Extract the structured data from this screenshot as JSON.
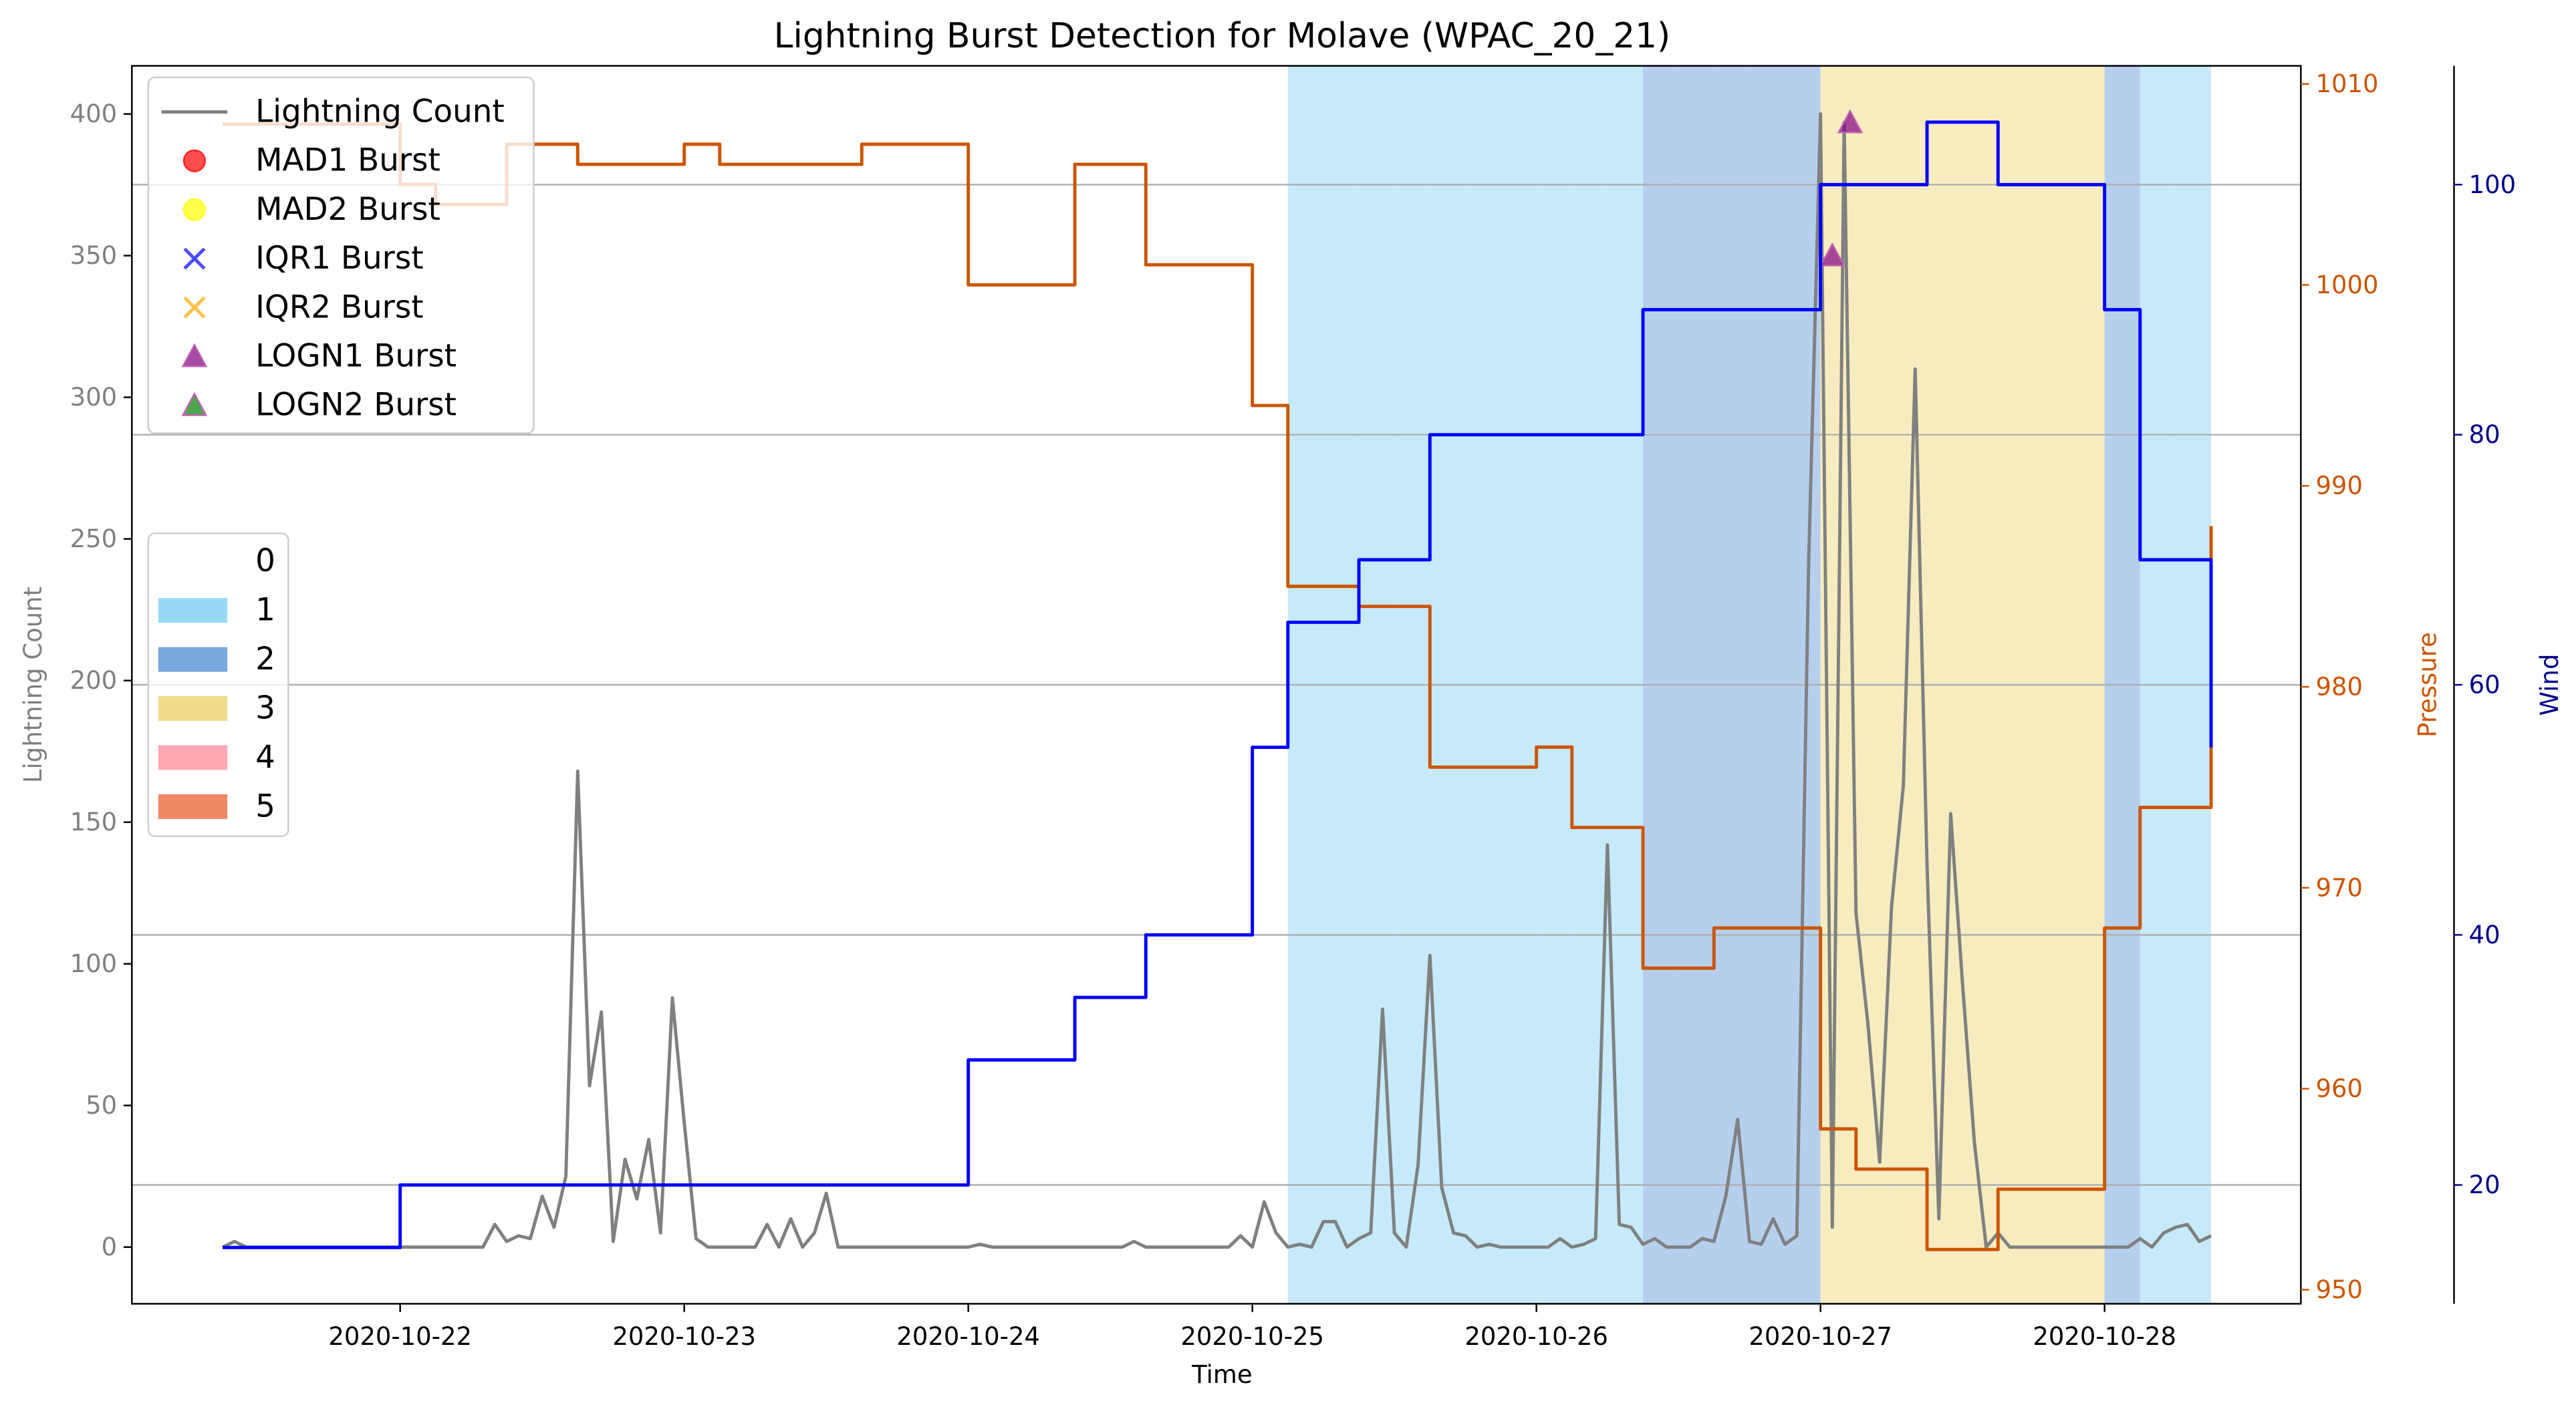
{
  "chart_data": {
    "type": "line",
    "title": "Lightning Burst Detection for Molave (WPAC_20_21)",
    "x_label": "Time",
    "y_label": "Lightning Count",
    "y2_label": "Pressure",
    "y3_label": "Wind",
    "xlim": [
      "2020-10-21 01:20",
      "2020-10-28 16:35"
    ],
    "xticks": [
      "2020-10-22",
      "2020-10-23",
      "2020-10-24",
      "2020-10-25",
      "2020-10-26",
      "2020-10-27",
      "2020-10-28"
    ],
    "ylim": [
      -20,
      417
    ],
    "yticks": [
      0,
      50,
      100,
      150,
      200,
      250,
      300,
      350,
      400
    ],
    "y2lim": [
      949.3,
      1010.9
    ],
    "y2ticks": [
      950,
      960,
      970,
      980,
      990,
      1000,
      1010
    ],
    "y3lim": [
      10.5,
      109.5
    ],
    "y3ticks": [
      20,
      40,
      60,
      80,
      100
    ],
    "grid": "y3",
    "legend_loc": "upper left",
    "x": [
      "2020-10-21 09:00",
      "2020-10-21 12:00",
      "2020-10-21 15:00",
      "2020-10-21 18:00",
      "2020-10-21 21:00",
      "2020-10-22 00:00",
      "2020-10-22 03:00",
      "2020-10-22 06:00",
      "2020-10-22 09:00",
      "2020-10-22 12:00",
      "2020-10-22 15:00",
      "2020-10-22 18:00",
      "2020-10-22 21:00",
      "2020-10-23 00:00",
      "2020-10-23 03:00",
      "2020-10-23 06:00",
      "2020-10-23 09:00",
      "2020-10-23 12:00",
      "2020-10-23 15:00",
      "2020-10-23 18:00",
      "2020-10-23 21:00",
      "2020-10-24 00:00",
      "2020-10-24 03:00",
      "2020-10-24 06:00",
      "2020-10-24 09:00",
      "2020-10-24 12:00",
      "2020-10-24 15:00",
      "2020-10-24 18:00",
      "2020-10-24 21:00",
      "2020-10-25 00:00",
      "2020-10-25 03:00",
      "2020-10-25 06:00",
      "2020-10-25 09:00",
      "2020-10-25 12:00",
      "2020-10-25 15:00",
      "2020-10-25 18:00",
      "2020-10-25 21:00",
      "2020-10-26 00:00",
      "2020-10-26 03:00",
      "2020-10-26 06:00",
      "2020-10-26 09:00",
      "2020-10-26 12:00",
      "2020-10-26 15:00",
      "2020-10-26 18:00",
      "2020-10-26 21:00",
      "2020-10-27 00:00",
      "2020-10-27 03:00",
      "2020-10-27 06:00",
      "2020-10-27 09:00",
      "2020-10-27 12:00",
      "2020-10-27 15:00",
      "2020-10-27 18:00",
      "2020-10-27 21:00",
      "2020-10-28 00:00",
      "2020-10-28 03:00",
      "2020-10-28 06:00",
      "2020-10-28 09:00"
    ],
    "intensity": {
      "legend": [
        "0",
        "1",
        "2",
        "3",
        "4",
        "5"
      ],
      "colors": [
        "#ffffff",
        "#99d9f5",
        "#7aa7dc",
        "#f0dc8c",
        "#ffa8b6",
        "#f08866"
      ],
      "values": [
        0,
        0,
        0,
        0,
        0,
        0,
        0,
        0,
        0,
        0,
        0,
        0,
        0,
        0,
        0,
        0,
        0,
        0,
        0,
        0,
        0,
        0,
        0,
        0,
        0,
        0,
        0,
        0,
        0,
        0,
        1,
        1,
        1,
        1,
        1,
        1,
        1,
        1,
        1,
        1,
        2,
        2,
        2,
        2,
        2,
        3,
        3,
        3,
        3,
        3,
        3,
        3,
        3,
        2,
        1,
        1,
        1
      ]
    },
    "series": [
      {
        "name": "Lightning Count",
        "color": "#808080",
        "x": [
          "2020-10-21 09:00",
          "2020-10-21 10:00",
          "2020-10-21 11:00",
          "2020-10-21 12:00",
          "2020-10-21 13:00",
          "2020-10-21 14:00",
          "2020-10-21 15:00",
          "2020-10-21 16:00",
          "2020-10-21 17:00",
          "2020-10-21 18:00",
          "2020-10-21 19:00",
          "2020-10-21 20:00",
          "2020-10-21 21:00",
          "2020-10-21 22:00",
          "2020-10-21 23:00",
          "2020-10-22 00:00",
          "2020-10-22 01:00",
          "2020-10-22 02:00",
          "2020-10-22 03:00",
          "2020-10-22 04:00",
          "2020-10-22 05:00",
          "2020-10-22 06:00",
          "2020-10-22 07:00",
          "2020-10-22 08:00",
          "2020-10-22 09:00",
          "2020-10-22 10:00",
          "2020-10-22 11:00",
          "2020-10-22 12:00",
          "2020-10-22 13:00",
          "2020-10-22 14:00",
          "2020-10-22 15:00",
          "2020-10-22 16:00",
          "2020-10-22 17:00",
          "2020-10-22 18:00",
          "2020-10-22 19:00",
          "2020-10-22 20:00",
          "2020-10-22 21:00",
          "2020-10-22 22:00",
          "2020-10-22 23:00",
          "2020-10-23 00:00",
          "2020-10-23 01:00",
          "2020-10-23 02:00",
          "2020-10-23 03:00",
          "2020-10-23 04:00",
          "2020-10-23 05:00",
          "2020-10-23 06:00",
          "2020-10-23 07:00",
          "2020-10-23 08:00",
          "2020-10-23 09:00",
          "2020-10-23 10:00",
          "2020-10-23 11:00",
          "2020-10-23 12:00",
          "2020-10-23 13:00",
          "2020-10-23 14:00",
          "2020-10-23 15:00",
          "2020-10-23 16:00",
          "2020-10-23 17:00",
          "2020-10-23 18:00",
          "2020-10-23 19:00",
          "2020-10-23 20:00",
          "2020-10-23 21:00",
          "2020-10-23 22:00",
          "2020-10-23 23:00",
          "2020-10-24 00:00",
          "2020-10-24 01:00",
          "2020-10-24 02:00",
          "2020-10-24 03:00",
          "2020-10-24 04:00",
          "2020-10-24 05:00",
          "2020-10-24 06:00",
          "2020-10-24 07:00",
          "2020-10-24 08:00",
          "2020-10-24 09:00",
          "2020-10-24 10:00",
          "2020-10-24 11:00",
          "2020-10-24 12:00",
          "2020-10-24 13:00",
          "2020-10-24 14:00",
          "2020-10-24 15:00",
          "2020-10-24 16:00",
          "2020-10-24 17:00",
          "2020-10-24 18:00",
          "2020-10-24 19:00",
          "2020-10-24 20:00",
          "2020-10-24 21:00",
          "2020-10-24 22:00",
          "2020-10-24 23:00",
          "2020-10-25 00:00",
          "2020-10-25 01:00",
          "2020-10-25 02:00",
          "2020-10-25 03:00",
          "2020-10-25 04:00",
          "2020-10-25 05:00",
          "2020-10-25 06:00",
          "2020-10-25 07:00",
          "2020-10-25 08:00",
          "2020-10-25 09:00",
          "2020-10-25 10:00",
          "2020-10-25 11:00",
          "2020-10-25 12:00",
          "2020-10-25 13:00",
          "2020-10-25 14:00",
          "2020-10-25 15:00",
          "2020-10-25 16:00",
          "2020-10-25 17:00",
          "2020-10-25 18:00",
          "2020-10-25 19:00",
          "2020-10-25 20:00",
          "2020-10-25 21:00",
          "2020-10-25 22:00",
          "2020-10-25 23:00",
          "2020-10-26 00:00",
          "2020-10-26 01:00",
          "2020-10-26 02:00",
          "2020-10-26 03:00",
          "2020-10-26 04:00",
          "2020-10-26 05:00",
          "2020-10-26 06:00",
          "2020-10-26 07:00",
          "2020-10-26 08:00",
          "2020-10-26 09:00",
          "2020-10-26 10:00",
          "2020-10-26 11:00",
          "2020-10-26 12:00",
          "2020-10-26 13:00",
          "2020-10-26 14:00",
          "2020-10-26 15:00",
          "2020-10-26 16:00",
          "2020-10-26 17:00",
          "2020-10-26 18:00",
          "2020-10-26 19:00",
          "2020-10-26 20:00",
          "2020-10-26 21:00",
          "2020-10-26 22:00",
          "2020-10-26 23:00",
          "2020-10-27 00:00",
          "2020-10-27 01:00",
          "2020-10-27 02:00",
          "2020-10-27 03:00",
          "2020-10-27 04:00",
          "2020-10-27 05:00",
          "2020-10-27 06:00",
          "2020-10-27 07:00",
          "2020-10-27 08:00",
          "2020-10-27 09:00",
          "2020-10-27 10:00",
          "2020-10-27 11:00",
          "2020-10-27 12:00",
          "2020-10-27 13:00",
          "2020-10-27 14:00",
          "2020-10-27 15:00",
          "2020-10-27 16:00",
          "2020-10-27 17:00",
          "2020-10-27 18:00",
          "2020-10-27 19:00",
          "2020-10-27 20:00",
          "2020-10-27 21:00",
          "2020-10-27 22:00",
          "2020-10-27 23:00",
          "2020-10-28 00:00",
          "2020-10-28 01:00",
          "2020-10-28 02:00",
          "2020-10-28 03:00",
          "2020-10-28 04:00",
          "2020-10-28 05:00",
          "2020-10-28 06:00",
          "2020-10-28 07:00",
          "2020-10-28 08:00",
          "2020-10-28 09:00"
        ],
        "values": [
          0,
          2,
          0,
          0,
          0,
          0,
          0,
          0,
          0,
          0,
          0,
          0,
          0,
          0,
          0,
          0,
          0,
          0,
          0,
          0,
          0,
          0,
          0,
          8,
          2,
          4,
          3,
          18,
          7,
          25,
          168,
          57,
          83,
          2,
          31,
          17,
          38,
          5,
          88,
          44,
          3,
          0,
          0,
          0,
          0,
          0,
          8,
          0,
          10,
          0,
          5,
          19,
          0,
          0,
          0,
          0,
          0,
          0,
          0,
          0,
          0,
          0,
          0,
          0,
          1,
          0,
          0,
          0,
          0,
          0,
          0,
          0,
          0,
          0,
          0,
          0,
          0,
          2,
          0,
          0,
          0,
          0,
          0,
          0,
          0,
          0,
          4,
          0,
          16,
          5,
          0,
          1,
          0,
          9,
          9,
          0,
          3,
          5,
          84,
          5,
          0,
          29,
          103,
          21,
          5,
          4,
          0,
          1,
          0,
          0,
          0,
          0,
          0,
          3,
          0,
          1,
          3,
          142,
          8,
          7,
          1,
          3,
          0,
          0,
          0,
          3,
          2,
          18,
          45,
          2,
          1,
          10,
          1,
          4,
          242,
          400,
          7,
          397,
          118,
          79,
          30,
          120,
          163,
          310,
          135,
          10,
          153,
          93,
          37,
          0,
          5,
          0,
          0,
          0,
          0,
          0,
          0,
          0,
          0,
          0,
          0,
          0,
          3,
          0,
          5,
          7,
          8,
          2,
          4
        ]
      },
      {
        "name": "MAD1 Burst",
        "color": "#ff0000",
        "marker": "circle",
        "x": [],
        "values": []
      },
      {
        "name": "MAD2 Burst",
        "color": "#ffff00",
        "marker": "circle",
        "x": [],
        "values": []
      },
      {
        "name": "IQR1 Burst",
        "color": "#0000ff",
        "marker": "x",
        "x": [],
        "values": []
      },
      {
        "name": "IQR2 Burst",
        "color": "#ffa500",
        "marker": "x",
        "x": [],
        "values": []
      },
      {
        "name": "LOGN1 Burst",
        "color": "#800080",
        "marker": "triangle",
        "x": [
          "2020-10-27 01:00",
          "2020-10-27 02:30"
        ],
        "values": [
          350,
          397
        ]
      },
      {
        "name": "LOGN2 Burst",
        "color": "#008000",
        "marker": "triangle",
        "x": [],
        "values": []
      },
      {
        "color": "#cc5500",
        "axis": "y2",
        "drawstyle": "steps-post",
        "values": [
          1008,
          1008,
          1008,
          1008,
          1008,
          1005,
          1004,
          1004,
          1007,
          1007,
          1006,
          1006,
          1006,
          1007,
          1006,
          1006,
          1006,
          1006,
          1007,
          1007,
          1007,
          1000,
          1000,
          1000,
          1006,
          1006,
          1001,
          1001,
          1001,
          994,
          985,
          985,
          984,
          984,
          976,
          976,
          976,
          977,
          973,
          973,
          966,
          966,
          968,
          968,
          968,
          958,
          956,
          956,
          952,
          952,
          955,
          955,
          955,
          968,
          974,
          974,
          988
        ]
      },
      {
        "color": "#0000ff",
        "axis": "y3",
        "drawstyle": "steps-post",
        "values": [
          15,
          15,
          15,
          15,
          15,
          20,
          20,
          20,
          20,
          20,
          20,
          20,
          20,
          20,
          20,
          20,
          20,
          20,
          20,
          20,
          20,
          30,
          30,
          30,
          35,
          35,
          40,
          40,
          40,
          55,
          65,
          65,
          70,
          70,
          80,
          80,
          80,
          80,
          80,
          80,
          90,
          90,
          90,
          90,
          90,
          100,
          100,
          100,
          105,
          105,
          100,
          100,
          100,
          90,
          70,
          70,
          55
        ]
      }
    ]
  }
}
